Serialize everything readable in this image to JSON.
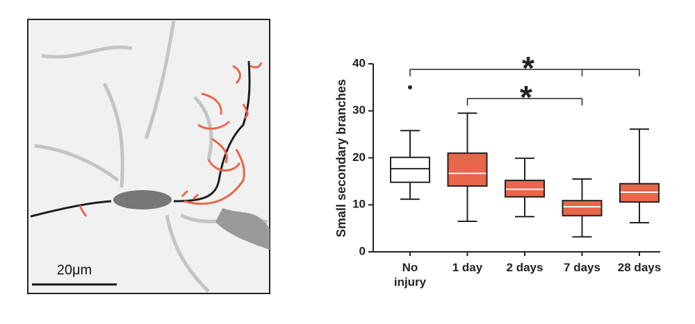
{
  "figure": {
    "scale_bar_label": "20μm"
  },
  "chart_data": {
    "type": "box",
    "ylabel": "Small secondary branches",
    "categories": [
      "No\ninjury",
      "1 day",
      "2 days",
      "7 days",
      "28 days"
    ],
    "colors": [
      "#ffffff",
      "#e8664a",
      "#e8664a",
      "#e8664a",
      "#e8664a"
    ],
    "boxes": [
      {
        "whislo": 11.2,
        "q1": 14.8,
        "med": 17.7,
        "q3": 20.1,
        "whishi": 25.8,
        "fliers": [
          35
        ]
      },
      {
        "whislo": 6.5,
        "q1": 14.0,
        "med": 16.7,
        "q3": 21.0,
        "whishi": 29.5
      },
      {
        "whislo": 7.5,
        "q1": 11.7,
        "med": 13.3,
        "q3": 15.2,
        "whishi": 19.9
      },
      {
        "whislo": 3.2,
        "q1": 7.7,
        "med": 9.6,
        "q3": 10.9,
        "whishi": 15.5
      },
      {
        "whislo": 6.2,
        "q1": 10.6,
        "med": 12.7,
        "q3": 14.5,
        "whishi": 26.1
      }
    ],
    "ylim": [
      0,
      40
    ],
    "yticks": [
      0,
      10,
      20,
      30,
      40
    ],
    "significance": [
      {
        "groups": [
          0,
          3,
          4
        ],
        "label": "*"
      },
      {
        "groups": [
          1,
          3
        ],
        "label": "*"
      }
    ]
  }
}
